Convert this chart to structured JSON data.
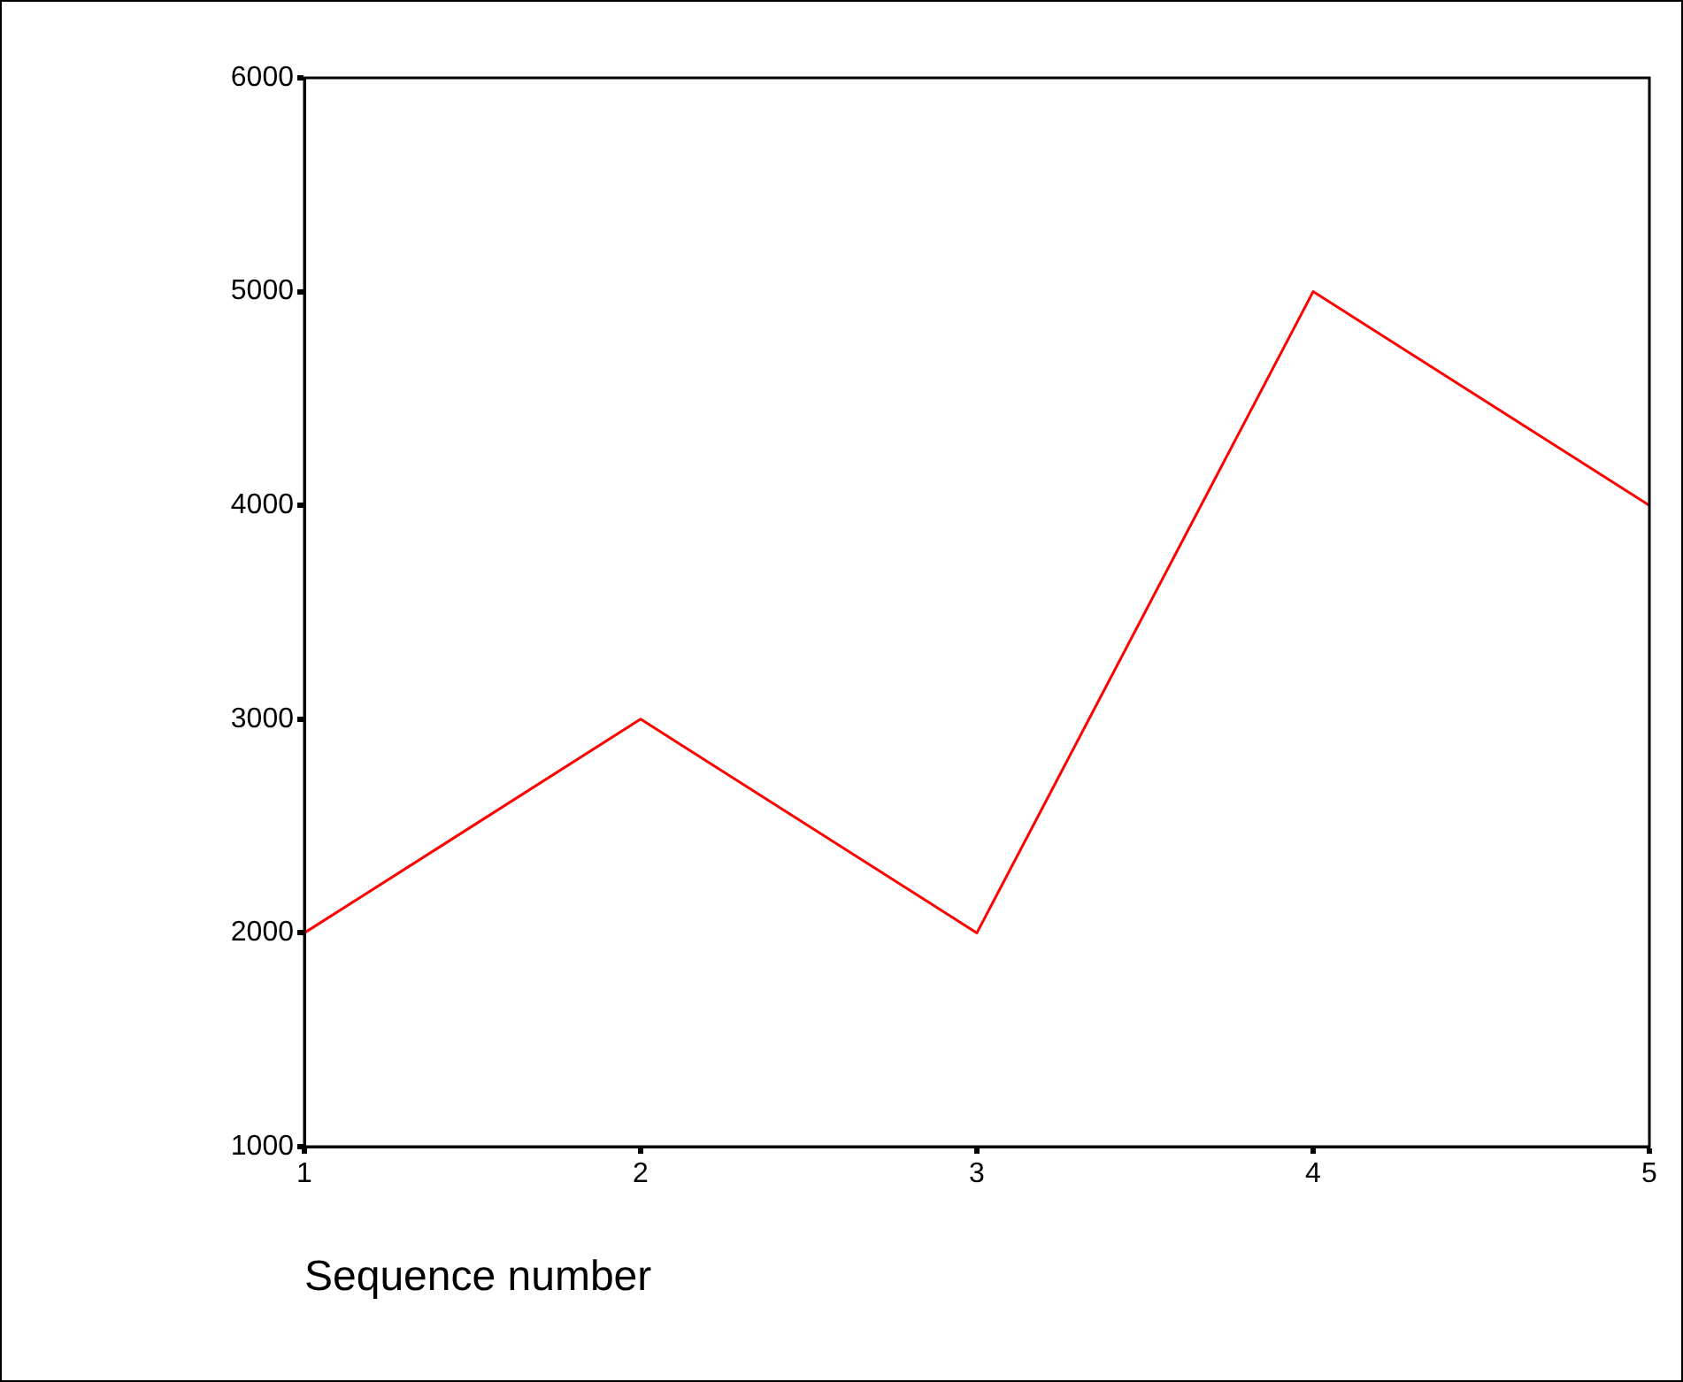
{
  "chart_data": {
    "type": "line",
    "xlabel": "Sequence number",
    "x": [
      1,
      2,
      3,
      4,
      5
    ],
    "series": [
      {
        "color": "#ff0000",
        "values": [
          2000,
          3000,
          2000,
          5000,
          4000
        ]
      }
    ],
    "xlim": [
      1,
      5
    ],
    "xticks": [
      1,
      2,
      3,
      4,
      5
    ],
    "ylim": [
      1000,
      6000
    ],
    "yticks": [
      1000,
      2000,
      3000,
      4000,
      5000,
      6000
    ],
    "line_style": "solid",
    "legend": false
  }
}
